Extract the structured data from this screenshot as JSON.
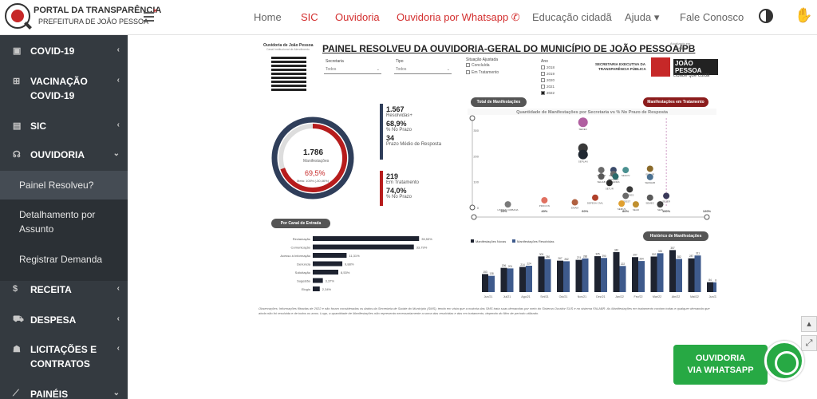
{
  "header": {
    "logo_line1": "PORTAL DA TRANSPARÊNCIA",
    "logo_line2": "PREFEITURA DE JOÃO PESSOA",
    "nav": [
      {
        "label": "Home",
        "color": "#666666"
      },
      {
        "label": "SIC",
        "color": "#d32f2f"
      },
      {
        "label": "Ouvidoria",
        "color": "#d32f2f"
      },
      {
        "label": "Ouvidoria por Whatsapp ✆",
        "color": "#d32f2f"
      },
      {
        "label": "Educação cidadã",
        "color": "#666666"
      },
      {
        "label": "Ajuda ▾",
        "color": "#666666"
      },
      {
        "label": "Fale Conosco",
        "color": "#666666"
      }
    ]
  },
  "sidebar": {
    "items": [
      {
        "label": "COVID-19",
        "icon": "briefcase-icon"
      },
      {
        "label": "VACINAÇÃO",
        "label2": "COVID-19",
        "icon": "plus-square-icon"
      },
      {
        "label": "SIC",
        "icon": "document-icon"
      },
      {
        "label": "OUVIDORIA",
        "icon": "headset-icon"
      },
      {
        "label": "RECEITA",
        "icon": "dollar-icon"
      },
      {
        "label": "DESPESA",
        "icon": "cart-icon"
      },
      {
        "label": "LICITAÇÕES E",
        "label2": "CONTRATOS",
        "icon": "users-icon"
      },
      {
        "label": "PAINÉIS",
        "icon": "chart-line-icon"
      }
    ],
    "subitems": [
      {
        "label": "Painel Resolveu?"
      },
      {
        "label": "Detalhamento por",
        "label2": "Assunto"
      },
      {
        "label": "Registrar Demanda"
      }
    ]
  },
  "dashboard": {
    "org": "Ouvidoria de João Pessoa",
    "org_sub": "Canal Institucional de Atendimento",
    "title": "PAINEL RESOLVEU DA OUVIDORIA-GERAL DO MUNICÍPIO DE JOÃO PESSOA/PB",
    "updated_label": "Atualizado em",
    "updated_date": "09/06/22",
    "secretaria_label": "Secretaria",
    "secretaria_value": "Todos",
    "tipo_label": "Tipo",
    "tipo_value": "Todos",
    "situacao_label": "Situação Ajustada",
    "situacao_opts": [
      "Concluída",
      "Em Tratamento"
    ],
    "ano_label": "Ano",
    "anos": [
      "2018",
      "2019",
      "2020",
      "2021",
      "2022"
    ],
    "brand_line1": "SECRETARIA EXECUTIVA DA",
    "brand_line2": "TRANSPARÊNCIA PÚBLICA",
    "brand_logo": "JOÃO PESSOA",
    "brand_slogan": "cidade que cuida",
    "donut_total": "1.786",
    "donut_label": "Manifestações",
    "donut_pct": "69,5%",
    "donut_meta": "Meta: 100% (-30,46%)",
    "kpi1": {
      "value": "1.567",
      "label": "Resolvidas+",
      "pct": "68,9%",
      "pct_label": "% No Prazo",
      "days": "34",
      "days_label": "Prazo Médio de Resposta"
    },
    "kpi2": {
      "value": "219",
      "label": "Em Tratamento",
      "pct": "74,0%",
      "pct_label": "% No Prazo"
    },
    "btn_total": "Total de Manifestações",
    "btn_tratamento": "Manifestações em Tratamento",
    "btn_canal": "Por Canal de Entrada",
    "btn_historico": "Histórico de Manifestações",
    "note": "Observações: Informações filtradas de 2022 e não foram consideradas os dados da Secretaria de Saúde do Município (SMS), tendo em vista que a maioria das SMS trata suas demandas por meio do Sistema Ouvidor SUS e no sistema FALABR. As Manifestações em tratamento contam todas e qualquer demanda que ainda não foi resolvida e de todos os anos. Logo, a quantidade de Manifestações não representa necessariamente a soma das resolvidas e das em tratamento, dependo do filtro de período utilizado."
  },
  "chart_data": [
    {
      "type": "bar",
      "title": "Por Canal de Entrada",
      "categories": [
        "Reclamação",
        "Comunicação",
        "Acesso à Informação",
        "Denúncia",
        "Solicitação",
        "Sugestão",
        "Elogio"
      ],
      "values": [
        35.53,
        33.79,
        11.31,
        9.88,
        8.53,
        3.37,
        2.34
      ],
      "labels": [
        "35,53%",
        "33,79%",
        "11,31%",
        "9,88%",
        "8,53%",
        "3,37%",
        "2,34%"
      ]
    },
    {
      "type": "scatter",
      "title": "Quantidade de Manifestações por Secretaria vs % No Prazo de Resposta",
      "xticks": [
        "20%",
        "40%",
        "60%",
        "80%",
        "100%"
      ],
      "yticks": [
        "0",
        "100",
        "200",
        "300"
      ],
      "xmax_label": "120%",
      "points": [
        {
          "label": "SEDEC",
          "x": 59,
          "y": 330,
          "color": "#b05fa0"
        },
        {
          "label": "SEDURB",
          "x": 59,
          "y": 230,
          "color": "#3a3a3a"
        },
        {
          "label": "SEPLAN",
          "x": 59,
          "y": 205,
          "color": "#202832"
        },
        {
          "label": "SEMOB",
          "x": 68,
          "y": 145,
          "color": "#6a6a6a"
        },
        {
          "label": "SEMAM",
          "x": 74,
          "y": 145,
          "color": "#3a4a6a"
        },
        {
          "label": "SEINFRA",
          "x": 74,
          "y": 130,
          "color": "#6a6a6a"
        },
        {
          "label": "SEGOV",
          "x": 80,
          "y": 145,
          "color": "#4a9090"
        },
        {
          "label": "SEHAB",
          "x": 68,
          "y": 120,
          "color": "#5a5a5a"
        },
        {
          "label": "EMLUR",
          "x": 92,
          "y": 150,
          "color": "#8a6a2a"
        },
        {
          "label": "SEMHAB",
          "x": 92,
          "y": 118,
          "color": "#4a7090"
        },
        {
          "label": "SEDES",
          "x": 75,
          "y": 120,
          "color": "#2a6a6a"
        },
        {
          "label": "SETUR",
          "x": 72,
          "y": 95,
          "color": "#2a2a2a"
        },
        {
          "label": "SEDES",
          "x": 82,
          "y": 70,
          "color": "#3a3a3a"
        },
        {
          "label": "SEDEST",
          "x": 80,
          "y": 45,
          "color": "#6a6a6a"
        },
        {
          "label": "DEFESA CIVIL",
          "x": 65,
          "y": 38,
          "color": "#b0402a"
        },
        {
          "label": "SEMEC",
          "x": 92,
          "y": 38,
          "color": "#5a5a5a"
        },
        {
          "label": "SEJER",
          "x": 100,
          "y": 45,
          "color": "#3a3a5a"
        },
        {
          "label": "PROCON",
          "x": 40,
          "y": 28,
          "color": "#e07060"
        },
        {
          "label": "EMAM",
          "x": 55,
          "y": 20,
          "color": "#b06040"
        },
        {
          "label": "LIMPEZA URBANA",
          "x": 22,
          "y": 12,
          "color": "#7a7a7a"
        },
        {
          "label": "SEMUS",
          "x": 78,
          "y": 15,
          "color": "#e0a030"
        },
        {
          "label": "SEAD",
          "x": 85,
          "y": 12,
          "color": "#c09030"
        },
        {
          "label": "SEIN",
          "x": 97,
          "y": 12,
          "color": "#404040"
        }
      ]
    },
    {
      "type": "bar",
      "title": "Histórico de Manifestações",
      "categories": [
        "Jun/21",
        "Jul/21",
        "Ago/21",
        "Set/21",
        "Out/21",
        "Nov/21",
        "Dez/21",
        "Jan/22",
        "Fev/22",
        "Mar/22",
        "Abr/22",
        "Mai/22",
        "Jun/22"
      ],
      "series": [
        {
          "name": "Manifestações Novas",
          "color": "#1e2330",
          "values": [
            153,
            206,
            214,
            303,
            267,
            274,
            305,
            340,
            297,
            302,
            357,
            287,
            84
          ]
        },
        {
          "name": "Manifestações Resolvidas",
          "color": "#3e5a8c",
          "values": [
            138,
            201,
            224,
            280,
            262,
            286,
            290,
            222,
            264,
            330,
            282,
            311,
            83
          ]
        }
      ]
    }
  ]
}
